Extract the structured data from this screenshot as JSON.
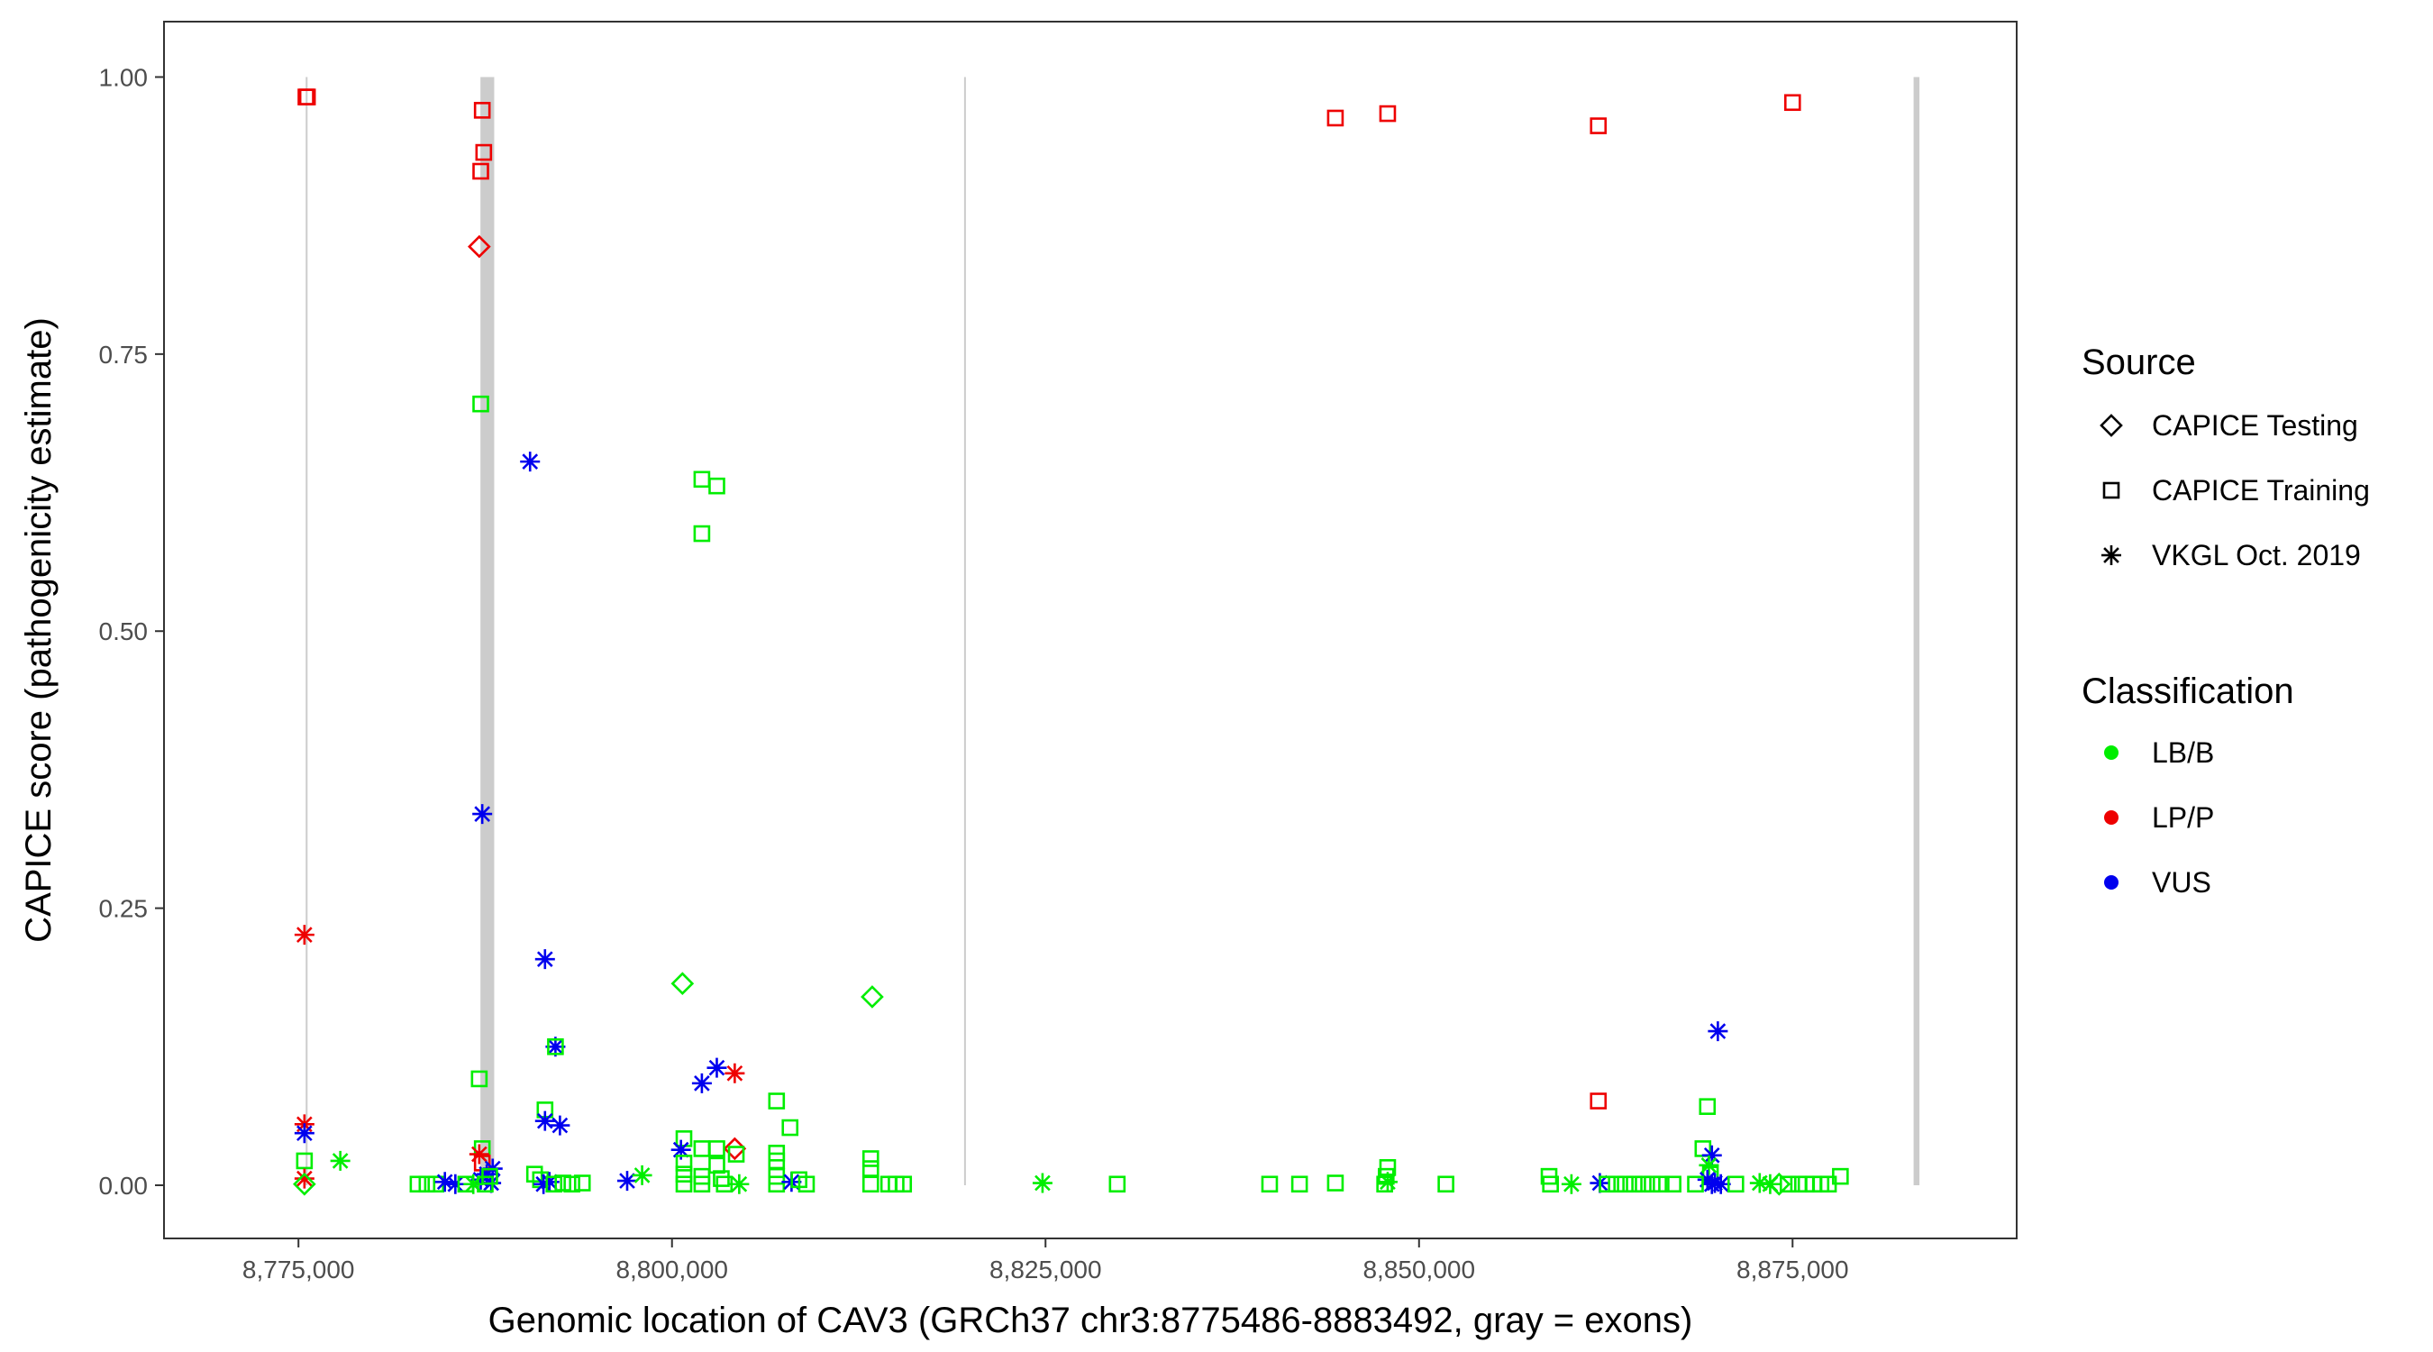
{
  "chart_data": {
    "type": "scatter",
    "title": "",
    "xlabel": "Genomic location of CAV3 (GRCh37 chr3:8775486-8883492, gray = exons)",
    "ylabel": "CAPICE score (pathogenicity estimate)",
    "xlim": [
      8766000,
      8890000
    ],
    "ylim": [
      -0.048,
      1.05
    ],
    "x_ticks": [
      8775000,
      8800000,
      8825000,
      8850000,
      8875000
    ],
    "x_tick_labels": [
      "8,775,000",
      "8,800,000",
      "8,825,000",
      "8,850,000",
      "8,875,000"
    ],
    "y_ticks": [
      0,
      0.25,
      0.5,
      0.75,
      1.0
    ],
    "y_tick_labels": [
      "0.00",
      "0.25",
      "0.50",
      "0.75",
      "1.00"
    ],
    "grid": false,
    "exons": [
      {
        "start": 8775486,
        "end": 8775560
      },
      {
        "start": 8787180,
        "end": 8788100
      },
      {
        "start": 8819550,
        "end": 8819620
      },
      {
        "start": 8883100,
        "end": 8883492
      }
    ],
    "legend": {
      "placement": "right",
      "shape_title": "Source",
      "shapes": [
        {
          "key": "diamond",
          "label": "CAPICE Testing"
        },
        {
          "key": "square",
          "label": "CAPICE Training"
        },
        {
          "key": "star",
          "label": "VKGL Oct. 2019"
        }
      ],
      "color_title": "Classification",
      "colors": [
        {
          "key": "LB/B",
          "label": "LB/B",
          "color": "#00ee00"
        },
        {
          "key": "LP/P",
          "label": "LP/P",
          "color": "#ee0000"
        },
        {
          "key": "VUS",
          "label": "VUS",
          "color": "#0000ee"
        }
      ]
    },
    "points": [
      {
        "x": 8775500,
        "y": 0.982,
        "shape": "square",
        "cls": "LP/P"
      },
      {
        "x": 8775600,
        "y": 0.982,
        "shape": "square",
        "cls": "LP/P"
      },
      {
        "x": 8787300,
        "y": 0.97,
        "shape": "square",
        "cls": "LP/P"
      },
      {
        "x": 8787400,
        "y": 0.932,
        "shape": "square",
        "cls": "LP/P"
      },
      {
        "x": 8787200,
        "y": 0.915,
        "shape": "square",
        "cls": "LP/P"
      },
      {
        "x": 8787100,
        "y": 0.847,
        "shape": "diamond",
        "cls": "LP/P"
      },
      {
        "x": 8787200,
        "y": 0.705,
        "shape": "square",
        "cls": "LB/B"
      },
      {
        "x": 8790500,
        "y": 0.653,
        "shape": "star",
        "cls": "VUS"
      },
      {
        "x": 8787300,
        "y": 0.335,
        "shape": "star",
        "cls": "VUS"
      },
      {
        "x": 8775400,
        "y": 0.226,
        "shape": "star",
        "cls": "LP/P"
      },
      {
        "x": 8791500,
        "y": 0.204,
        "shape": "star",
        "cls": "VUS"
      },
      {
        "x": 8792200,
        "y": 0.125,
        "shape": "star",
        "cls": "VUS"
      },
      {
        "x": 8792200,
        "y": 0.125,
        "shape": "square",
        "cls": "LB/B"
      },
      {
        "x": 8787100,
        "y": 0.096,
        "shape": "square",
        "cls": "LB/B"
      },
      {
        "x": 8791500,
        "y": 0.068,
        "shape": "square",
        "cls": "LB/B"
      },
      {
        "x": 8791500,
        "y": 0.058,
        "shape": "star",
        "cls": "VUS"
      },
      {
        "x": 8792500,
        "y": 0.054,
        "shape": "star",
        "cls": "VUS"
      },
      {
        "x": 8775400,
        "y": 0.055,
        "shape": "star",
        "cls": "LP/P"
      },
      {
        "x": 8775400,
        "y": 0.047,
        "shape": "star",
        "cls": "VUS"
      },
      {
        "x": 8775400,
        "y": 0.022,
        "shape": "square",
        "cls": "LB/B"
      },
      {
        "x": 8775400,
        "y": 0.006,
        "shape": "star",
        "cls": "LP/P"
      },
      {
        "x": 8775400,
        "y": 0.001,
        "shape": "diamond",
        "cls": "LB/B"
      },
      {
        "x": 8777800,
        "y": 0.022,
        "shape": "star",
        "cls": "LB/B"
      },
      {
        "x": 8787300,
        "y": 0.033,
        "shape": "square",
        "cls": "LB/B"
      },
      {
        "x": 8787100,
        "y": 0.028,
        "shape": "star",
        "cls": "LP/P"
      },
      {
        "x": 8787300,
        "y": 0.02,
        "shape": "square",
        "cls": "LP/P"
      },
      {
        "x": 8788000,
        "y": 0.015,
        "shape": "star",
        "cls": "VUS"
      },
      {
        "x": 8787600,
        "y": 0.01,
        "shape": "star",
        "cls": "VUS"
      },
      {
        "x": 8787200,
        "y": 0.005,
        "shape": "star",
        "cls": "VUS"
      },
      {
        "x": 8787900,
        "y": 0.002,
        "shape": "star",
        "cls": "VUS"
      },
      {
        "x": 8787500,
        "y": 0.001,
        "shape": "square",
        "cls": "LB/B"
      },
      {
        "x": 8787800,
        "y": 0.008,
        "shape": "square",
        "cls": "LB/B"
      },
      {
        "x": 8783000,
        "y": 0.001,
        "shape": "square",
        "cls": "LB/B"
      },
      {
        "x": 8783600,
        "y": 0.001,
        "shape": "square",
        "cls": "LB/B"
      },
      {
        "x": 8784200,
        "y": 0.001,
        "shape": "square",
        "cls": "LB/B"
      },
      {
        "x": 8784800,
        "y": 0.003,
        "shape": "star",
        "cls": "VUS"
      },
      {
        "x": 8785500,
        "y": 0.001,
        "shape": "star",
        "cls": "VUS"
      },
      {
        "x": 8786200,
        "y": 0.001,
        "shape": "square",
        "cls": "LB/B"
      },
      {
        "x": 8786700,
        "y": 0.001,
        "shape": "star",
        "cls": "LB/B"
      },
      {
        "x": 8790800,
        "y": 0.01,
        "shape": "square",
        "cls": "LB/B"
      },
      {
        "x": 8791200,
        "y": 0.005,
        "shape": "square",
        "cls": "LB/B"
      },
      {
        "x": 8791400,
        "y": 0.001,
        "shape": "star",
        "cls": "VUS"
      },
      {
        "x": 8791800,
        "y": 0.003,
        "shape": "star",
        "cls": "VUS"
      },
      {
        "x": 8792100,
        "y": 0.001,
        "shape": "square",
        "cls": "LB/B"
      },
      {
        "x": 8792700,
        "y": 0.002,
        "shape": "square",
        "cls": "LB/B"
      },
      {
        "x": 8793300,
        "y": 0.001,
        "shape": "square",
        "cls": "LB/B"
      },
      {
        "x": 8794000,
        "y": 0.002,
        "shape": "square",
        "cls": "LB/B"
      },
      {
        "x": 8797000,
        "y": 0.004,
        "shape": "star",
        "cls": "VUS"
      },
      {
        "x": 8798000,
        "y": 0.009,
        "shape": "star",
        "cls": "LB/B"
      },
      {
        "x": 8800700,
        "y": 0.182,
        "shape": "diamond",
        "cls": "LB/B"
      },
      {
        "x": 8802000,
        "y": 0.637,
        "shape": "square",
        "cls": "LB/B"
      },
      {
        "x": 8803000,
        "y": 0.631,
        "shape": "square",
        "cls": "LB/B"
      },
      {
        "x": 8802000,
        "y": 0.588,
        "shape": "square",
        "cls": "LB/B"
      },
      {
        "x": 8803000,
        "y": 0.106,
        "shape": "star",
        "cls": "VUS"
      },
      {
        "x": 8804200,
        "y": 0.101,
        "shape": "star",
        "cls": "LP/P"
      },
      {
        "x": 8802000,
        "y": 0.092,
        "shape": "star",
        "cls": "VUS"
      },
      {
        "x": 8800800,
        "y": 0.042,
        "shape": "square",
        "cls": "LB/B"
      },
      {
        "x": 8804200,
        "y": 0.033,
        "shape": "diamond",
        "cls": "LP/P"
      },
      {
        "x": 8800600,
        "y": 0.032,
        "shape": "star",
        "cls": "VUS"
      },
      {
        "x": 8802000,
        "y": 0.033,
        "shape": "square",
        "cls": "LB/B"
      },
      {
        "x": 8803000,
        "y": 0.033,
        "shape": "square",
        "cls": "LB/B"
      },
      {
        "x": 8804300,
        "y": 0.028,
        "shape": "square",
        "cls": "LB/B"
      },
      {
        "x": 8800800,
        "y": 0.02,
        "shape": "square",
        "cls": "LB/B"
      },
      {
        "x": 8803000,
        "y": 0.018,
        "shape": "square",
        "cls": "LB/B"
      },
      {
        "x": 8800800,
        "y": 0.01,
        "shape": "square",
        "cls": "LB/B"
      },
      {
        "x": 8802000,
        "y": 0.008,
        "shape": "square",
        "cls": "LB/B"
      },
      {
        "x": 8803300,
        "y": 0.006,
        "shape": "square",
        "cls": "LB/B"
      },
      {
        "x": 8800800,
        "y": 0.001,
        "shape": "square",
        "cls": "LB/B"
      },
      {
        "x": 8802000,
        "y": 0.001,
        "shape": "square",
        "cls": "LB/B"
      },
      {
        "x": 8803500,
        "y": 0.001,
        "shape": "square",
        "cls": "LB/B"
      },
      {
        "x": 8804500,
        "y": 0.001,
        "shape": "star",
        "cls": "LB/B"
      },
      {
        "x": 8807000,
        "y": 0.076,
        "shape": "square",
        "cls": "LB/B"
      },
      {
        "x": 8807900,
        "y": 0.052,
        "shape": "square",
        "cls": "LB/B"
      },
      {
        "x": 8807000,
        "y": 0.029,
        "shape": "square",
        "cls": "LB/B"
      },
      {
        "x": 8807000,
        "y": 0.022,
        "shape": "square",
        "cls": "LB/B"
      },
      {
        "x": 8807000,
        "y": 0.008,
        "shape": "square",
        "cls": "LB/B"
      },
      {
        "x": 8807000,
        "y": 0.001,
        "shape": "square",
        "cls": "LB/B"
      },
      {
        "x": 8808000,
        "y": 0.003,
        "shape": "star",
        "cls": "VUS"
      },
      {
        "x": 8808500,
        "y": 0.005,
        "shape": "square",
        "cls": "LB/B"
      },
      {
        "x": 8809000,
        "y": 0.001,
        "shape": "square",
        "cls": "LB/B"
      },
      {
        "x": 8813400,
        "y": 0.17,
        "shape": "diamond",
        "cls": "LB/B"
      },
      {
        "x": 8813300,
        "y": 0.024,
        "shape": "square",
        "cls": "LB/B"
      },
      {
        "x": 8813300,
        "y": 0.015,
        "shape": "square",
        "cls": "LB/B"
      },
      {
        "x": 8813300,
        "y": 0.001,
        "shape": "square",
        "cls": "LB/B"
      },
      {
        "x": 8814500,
        "y": 0.001,
        "shape": "square",
        "cls": "LB/B"
      },
      {
        "x": 8815000,
        "y": 0.001,
        "shape": "square",
        "cls": "LB/B"
      },
      {
        "x": 8815500,
        "y": 0.001,
        "shape": "square",
        "cls": "LB/B"
      },
      {
        "x": 8824800,
        "y": 0.002,
        "shape": "star",
        "cls": "LB/B"
      },
      {
        "x": 8829800,
        "y": 0.001,
        "shape": "square",
        "cls": "LB/B"
      },
      {
        "x": 8840000,
        "y": 0.001,
        "shape": "square",
        "cls": "LB/B"
      },
      {
        "x": 8842000,
        "y": 0.001,
        "shape": "square",
        "cls": "LB/B"
      },
      {
        "x": 8844400,
        "y": 0.963,
        "shape": "square",
        "cls": "LP/P"
      },
      {
        "x": 8844400,
        "y": 0.002,
        "shape": "square",
        "cls": "LB/B"
      },
      {
        "x": 8847900,
        "y": 0.967,
        "shape": "square",
        "cls": "LP/P"
      },
      {
        "x": 8847900,
        "y": 0.016,
        "shape": "square",
        "cls": "LB/B"
      },
      {
        "x": 8847800,
        "y": 0.008,
        "shape": "square",
        "cls": "LB/B"
      },
      {
        "x": 8847700,
        "y": 0.001,
        "shape": "square",
        "cls": "LB/B"
      },
      {
        "x": 8847900,
        "y": 0.003,
        "shape": "star",
        "cls": "LB/B"
      },
      {
        "x": 8851800,
        "y": 0.001,
        "shape": "square",
        "cls": "LB/B"
      },
      {
        "x": 8858700,
        "y": 0.008,
        "shape": "square",
        "cls": "LB/B"
      },
      {
        "x": 8858800,
        "y": 0.001,
        "shape": "square",
        "cls": "LB/B"
      },
      {
        "x": 8860200,
        "y": 0.001,
        "shape": "star",
        "cls": "LB/B"
      },
      {
        "x": 8862000,
        "y": 0.956,
        "shape": "square",
        "cls": "LP/P"
      },
      {
        "x": 8862000,
        "y": 0.076,
        "shape": "square",
        "cls": "LP/P"
      },
      {
        "x": 8862100,
        "y": 0.002,
        "shape": "star",
        "cls": "VUS"
      },
      {
        "x": 8862600,
        "y": 0.001,
        "shape": "square",
        "cls": "LB/B"
      },
      {
        "x": 8863200,
        "y": 0.001,
        "shape": "square",
        "cls": "LB/B"
      },
      {
        "x": 8863800,
        "y": 0.001,
        "shape": "square",
        "cls": "LB/B"
      },
      {
        "x": 8864400,
        "y": 0.001,
        "shape": "square",
        "cls": "LB/B"
      },
      {
        "x": 8865000,
        "y": 0.001,
        "shape": "square",
        "cls": "LB/B"
      },
      {
        "x": 8865600,
        "y": 0.001,
        "shape": "square",
        "cls": "LB/B"
      },
      {
        "x": 8866200,
        "y": 0.001,
        "shape": "square",
        "cls": "LB/B"
      },
      {
        "x": 8867000,
        "y": 0.001,
        "shape": "square",
        "cls": "LB/B"
      },
      {
        "x": 8869000,
        "y": 0.033,
        "shape": "square",
        "cls": "LB/B"
      },
      {
        "x": 8869300,
        "y": 0.071,
        "shape": "square",
        "cls": "LB/B"
      },
      {
        "x": 8869600,
        "y": 0.027,
        "shape": "star",
        "cls": "VUS"
      },
      {
        "x": 8869400,
        "y": 0.018,
        "shape": "star",
        "cls": "LB/B"
      },
      {
        "x": 8869500,
        "y": 0.01,
        "shape": "square",
        "cls": "LB/B"
      },
      {
        "x": 8869300,
        "y": 0.005,
        "shape": "star",
        "cls": "VUS"
      },
      {
        "x": 8869800,
        "y": 0.002,
        "shape": "star",
        "cls": "VUS"
      },
      {
        "x": 8869600,
        "y": 0.001,
        "shape": "star",
        "cls": "VUS"
      },
      {
        "x": 8870000,
        "y": 0.139,
        "shape": "star",
        "cls": "VUS"
      },
      {
        "x": 8870200,
        "y": 0.001,
        "shape": "star",
        "cls": "VUS"
      },
      {
        "x": 8868500,
        "y": 0.001,
        "shape": "square",
        "cls": "LB/B"
      },
      {
        "x": 8871200,
        "y": 0.001,
        "shape": "square",
        "cls": "LB/B"
      },
      {
        "x": 8872800,
        "y": 0.002,
        "shape": "star",
        "cls": "LB/B"
      },
      {
        "x": 8873500,
        "y": 0.001,
        "shape": "star",
        "cls": "LB/B"
      },
      {
        "x": 8874100,
        "y": 0.001,
        "shape": "diamond",
        "cls": "LB/B"
      },
      {
        "x": 8874700,
        "y": 0.001,
        "shape": "square",
        "cls": "LB/B"
      },
      {
        "x": 8875000,
        "y": 0.977,
        "shape": "square",
        "cls": "LP/P"
      },
      {
        "x": 8875400,
        "y": 0.001,
        "shape": "square",
        "cls": "LB/B"
      },
      {
        "x": 8875900,
        "y": 0.001,
        "shape": "square",
        "cls": "LB/B"
      },
      {
        "x": 8876400,
        "y": 0.001,
        "shape": "square",
        "cls": "LB/B"
      },
      {
        "x": 8876900,
        "y": 0.001,
        "shape": "square",
        "cls": "LB/B"
      },
      {
        "x": 8877400,
        "y": 0.001,
        "shape": "square",
        "cls": "LB/B"
      },
      {
        "x": 8878200,
        "y": 0.008,
        "shape": "square",
        "cls": "LB/B"
      }
    ]
  }
}
